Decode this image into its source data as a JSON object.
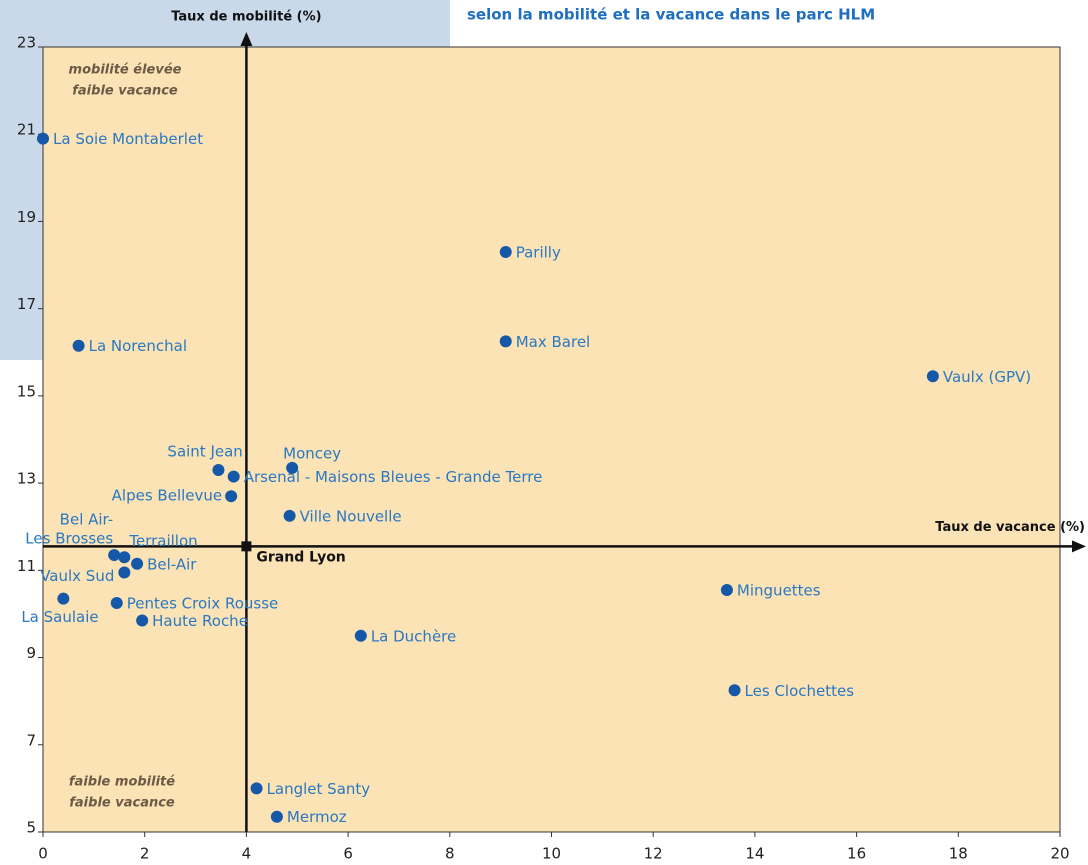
{
  "chart_data": {
    "type": "scatter",
    "title": "selon la mobilité et la vacance dans le parc HLM",
    "x_label": "Taux de vacance (%)",
    "y_label": "Taux de mobilité (%)",
    "xlim": [
      0,
      20
    ],
    "xticks": [
      0,
      2,
      4,
      6,
      8,
      10,
      12,
      14,
      16,
      18,
      20
    ],
    "ylim": [
      5,
      23
    ],
    "yticks": [
      5,
      7,
      9,
      11,
      13,
      15,
      17,
      19,
      21,
      23
    ],
    "color": "#1658a8",
    "annotations": [
      [
        "mobilité élevée",
        "faible vacance"
      ],
      [
        "faible mobilité",
        "faible vacance"
      ]
    ],
    "reference": {
      "label": "Grand Lyon",
      "x": 4,
      "y": 11.55,
      "color": "#111111"
    },
    "points": [
      {
        "label": "La Soie Montaberlet",
        "x": 0,
        "y": 20.9
      },
      {
        "label": "Parilly",
        "x": 9.1,
        "y": 18.3
      },
      {
        "label": "La Norenchal",
        "x": 0.7,
        "y": 16.15
      },
      {
        "label": "Max Barel",
        "x": 9.1,
        "y": 16.25
      },
      {
        "label": "Vaulx (GPV)",
        "x": 17.5,
        "y": 15.45
      },
      {
        "label": "Saint Jean",
        "x": 3.45,
        "y": 13.3
      },
      {
        "label": "Arsenal - Maisons Bleues - Grande Terre",
        "x": 3.75,
        "y": 13.15
      },
      {
        "label": "Moncey",
        "x": 4.9,
        "y": 13.35
      },
      {
        "label": "Alpes Bellevue",
        "x": 3.7,
        "y": 12.7
      },
      {
        "label": "Ville Nouvelle",
        "x": 4.85,
        "y": 12.25
      },
      {
        "label": [
          "Bel Air-",
          "Les Brosses"
        ],
        "x": 1.4,
        "y": 11.35
      },
      {
        "label": "Terraillon",
        "x": 1.6,
        "y": 11.3
      },
      {
        "label": "Bel-Air",
        "x": 1.85,
        "y": 11.15
      },
      {
        "label": "Vaulx Sud",
        "x": 1.6,
        "y": 10.95
      },
      {
        "label": "La Saulaie",
        "x": 0.4,
        "y": 10.35
      },
      {
        "label": "Pentes Croix Rousse",
        "x": 1.45,
        "y": 10.25
      },
      {
        "label": "Haute Roche",
        "x": 1.95,
        "y": 9.85
      },
      {
        "label": "La Duchère",
        "x": 6.25,
        "y": 9.5
      },
      {
        "label": "Minguettes",
        "x": 13.45,
        "y": 10.55
      },
      {
        "label": "Les Clochettes",
        "x": 13.6,
        "y": 8.25
      },
      {
        "label": "Langlet Santy",
        "x": 4.2,
        "y": 6.0
      },
      {
        "label": "Mermoz",
        "x": 4.6,
        "y": 5.35
      }
    ]
  }
}
